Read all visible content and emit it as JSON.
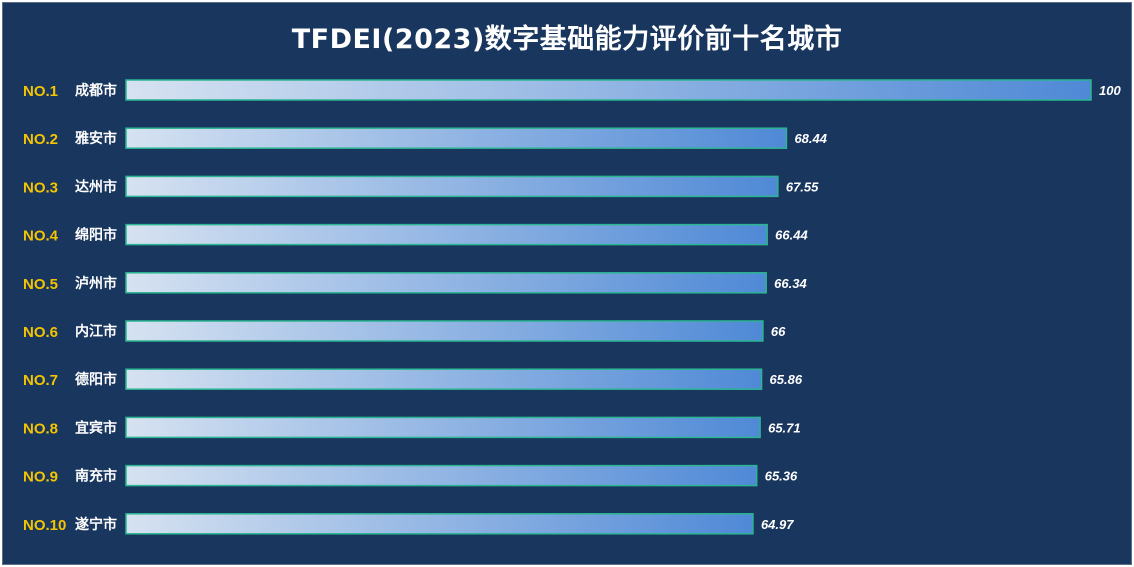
{
  "chart_data": {
    "type": "bar",
    "orientation": "horizontal",
    "title": "TFDEI(2023)数字基础能力评价前十名城市",
    "ranks": [
      "NO.1",
      "NO.2",
      "NO.3",
      "NO.4",
      "NO.5",
      "NO.6",
      "NO.7",
      "NO.8",
      "NO.9",
      "NO.10"
    ],
    "categories": [
      "成都市",
      "雅安市",
      "达州市",
      "绵阳市",
      "泸州市",
      "内江市",
      "德阳市",
      "宜宾市",
      "南充市",
      "遂宁市"
    ],
    "values": [
      100,
      68.44,
      67.55,
      66.44,
      66.34,
      66,
      65.86,
      65.71,
      65.36,
      64.97
    ],
    "value_labels": [
      "100",
      "68.44",
      "67.55",
      "66.44",
      "66.34",
      "66",
      "65.86",
      "65.71",
      "65.36",
      "64.97"
    ],
    "xlim": [
      0,
      100
    ],
    "grid": false,
    "legend": "none",
    "colors": {
      "background": "#18365e",
      "bar_start": "#d6e2f1",
      "bar_end": "#4f89d6",
      "bar_border": "#2bb592",
      "rank_text": "#f5c400",
      "city_text": "#ffffff",
      "value_text": "#ffffff",
      "title_text": "#ffffff"
    }
  }
}
